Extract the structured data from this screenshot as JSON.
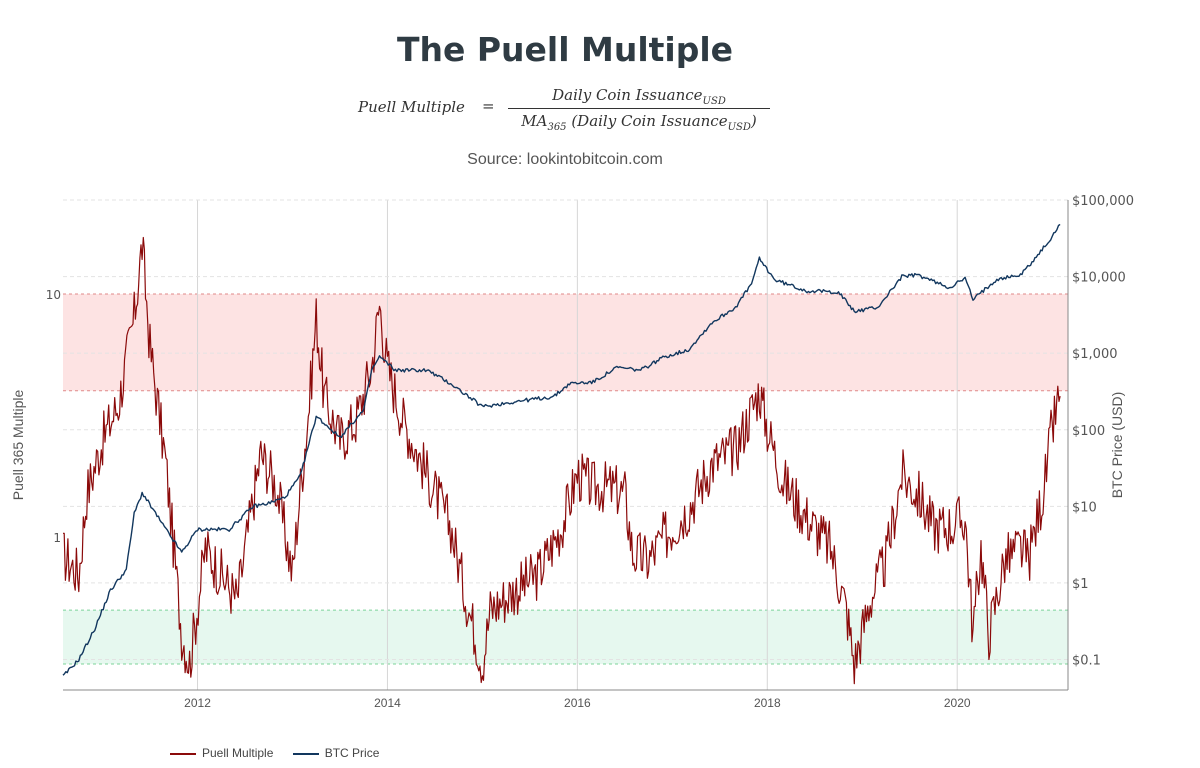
{
  "header": {
    "title": "The Puell Multiple",
    "formula_lhs": "Puell Multiple",
    "formula_eq": "=",
    "formula_num_text": "Daily Coin Issuance",
    "formula_num_sub": "USD",
    "formula_den_ma": "MA",
    "formula_den_ma_sub": "365",
    "formula_den_text": " (Daily Coin Issuance",
    "formula_den_sub": "USD",
    "formula_den_close": ")",
    "source": "Source: lookintobitcoin.com"
  },
  "colors": {
    "puell": "#8b0a0a",
    "puell_light": "#b58a86",
    "btc": "#12375e",
    "red_band": "#fde3e3",
    "green_band": "#e6f8ef",
    "red_band_line": "#e08a8a",
    "green_band_line": "#7cd39a",
    "grid": "#d6d6d6"
  },
  "chart_data": {
    "type": "line",
    "x_range": [
      "2010-08",
      "2021-03"
    ],
    "x_ticks": [
      "2012",
      "2014",
      "2016",
      "2018",
      "2020"
    ],
    "y_left": {
      "label": "Puell 365 Multiple",
      "scale": "log",
      "ticks": [
        "1",
        "10"
      ]
    },
    "y_right": {
      "label": "BTC Price (USD)",
      "scale": "log",
      "ticks": [
        "$0.1",
        "$1",
        "$10",
        "$100",
        "$1,000",
        "$10,000",
        "$100,000"
      ],
      "range": [
        0.04,
        100000
      ]
    },
    "bands": [
      {
        "name": "top zone",
        "from": 4,
        "to": 10,
        "color": "red"
      },
      {
        "name": "bottom zone",
        "from": 0.3,
        "to": 0.5,
        "color": "green"
      }
    ],
    "series": [
      {
        "name": "Puell Multiple",
        "axis": "left",
        "points": [
          [
            "2010-08",
            0.85
          ],
          [
            "2010-10",
            0.7
          ],
          [
            "2010-11",
            1.5
          ],
          [
            "2011-01",
            2.5
          ],
          [
            "2011-03",
            3.5
          ],
          [
            "2011-05",
            8
          ],
          [
            "2011-06",
            16
          ],
          [
            "2011-07",
            6
          ],
          [
            "2011-09",
            2
          ],
          [
            "2011-11",
            0.4
          ],
          [
            "2011-12",
            0.3
          ],
          [
            "2012-02",
            0.9
          ],
          [
            "2012-04",
            0.7
          ],
          [
            "2012-06",
            0.55
          ],
          [
            "2012-08",
            1.4
          ],
          [
            "2012-09",
            2.2
          ],
          [
            "2012-11",
            1.6
          ],
          [
            "2013-01",
            0.7
          ],
          [
            "2013-02",
            1.6
          ],
          [
            "2013-03",
            3.2
          ],
          [
            "2013-04",
            8
          ],
          [
            "2013-05",
            3.8
          ],
          [
            "2013-07",
            2.5
          ],
          [
            "2013-09",
            3.0
          ],
          [
            "2013-11",
            5
          ],
          [
            "2013-12",
            9
          ],
          [
            "2014-01",
            5
          ],
          [
            "2014-03",
            3.0
          ],
          [
            "2014-06",
            1.8
          ],
          [
            "2014-09",
            1.1
          ],
          [
            "2014-11",
            0.55
          ],
          [
            "2015-01",
            0.3
          ],
          [
            "2015-02",
            0.5
          ],
          [
            "2015-05",
            0.6
          ],
          [
            "2015-08",
            0.7
          ],
          [
            "2015-11",
            1.1
          ],
          [
            "2016-01",
            1.8
          ],
          [
            "2016-03",
            1.6
          ],
          [
            "2016-05",
            1.6
          ],
          [
            "2016-07",
            1.5
          ],
          [
            "2016-08",
            0.85
          ],
          [
            "2016-10",
            0.8
          ],
          [
            "2016-12",
            1.0
          ],
          [
            "2017-03",
            1.3
          ],
          [
            "2017-06",
            2.0
          ],
          [
            "2017-09",
            2.3
          ],
          [
            "2017-12",
            4.0
          ],
          [
            "2018-01",
            2.8
          ],
          [
            "2018-03",
            1.7
          ],
          [
            "2018-06",
            1.2
          ],
          [
            "2018-09",
            0.9
          ],
          [
            "2018-11",
            0.5
          ],
          [
            "2018-12",
            0.3
          ],
          [
            "2019-02",
            0.55
          ],
          [
            "2019-04",
            0.8
          ],
          [
            "2019-06",
            1.8
          ],
          [
            "2019-08",
            1.5
          ],
          [
            "2019-10",
            1.1
          ],
          [
            "2019-12",
            1.1
          ],
          [
            "2020-02",
            1.2
          ],
          [
            "2020-03",
            0.4
          ],
          [
            "2020-04",
            0.9
          ],
          [
            "2020-05",
            0.4
          ],
          [
            "2020-07",
            0.8
          ],
          [
            "2020-09",
            0.9
          ],
          [
            "2020-10",
            0.8
          ],
          [
            "2020-12",
            1.6
          ],
          [
            "2021-01",
            2.8
          ],
          [
            "2021-02",
            3.8
          ]
        ]
      },
      {
        "name": "BTC Price",
        "axis": "right",
        "points": [
          [
            "2010-08",
            0.06
          ],
          [
            "2010-10",
            0.1
          ],
          [
            "2010-12",
            0.25
          ],
          [
            "2011-02",
            0.8
          ],
          [
            "2011-04",
            1.5
          ],
          [
            "2011-05",
            8
          ],
          [
            "2011-06",
            15
          ],
          [
            "2011-09",
            5
          ],
          [
            "2011-11",
            2.5
          ],
          [
            "2012-01",
            5
          ],
          [
            "2012-05",
            5
          ],
          [
            "2012-08",
            10
          ],
          [
            "2012-10",
            11
          ],
          [
            "2012-12",
            13
          ],
          [
            "2013-02",
            25
          ],
          [
            "2013-04",
            150
          ],
          [
            "2013-07",
            80
          ],
          [
            "2013-10",
            180
          ],
          [
            "2013-11",
            600
          ],
          [
            "2013-12",
            900
          ],
          [
            "2014-02",
            600
          ],
          [
            "2014-06",
            600
          ],
          [
            "2014-09",
            400
          ],
          [
            "2015-01",
            200
          ],
          [
            "2015-06",
            240
          ],
          [
            "2015-10",
            270
          ],
          [
            "2015-12",
            400
          ],
          [
            "2016-03",
            420
          ],
          [
            "2016-06",
            650
          ],
          [
            "2016-09",
            600
          ],
          [
            "2016-12",
            900
          ],
          [
            "2017-03",
            1100
          ],
          [
            "2017-06",
            2500
          ],
          [
            "2017-09",
            4000
          ],
          [
            "2017-11",
            8000
          ],
          [
            "2017-12",
            17000
          ],
          [
            "2018-02",
            9000
          ],
          [
            "2018-06",
            6500
          ],
          [
            "2018-10",
            6300
          ],
          [
            "2018-12",
            3500
          ],
          [
            "2019-03",
            4000
          ],
          [
            "2019-06",
            10000
          ],
          [
            "2019-08",
            10500
          ],
          [
            "2019-12",
            7200
          ],
          [
            "2020-02",
            9500
          ],
          [
            "2020-03",
            5000
          ],
          [
            "2020-06",
            9300
          ],
          [
            "2020-09",
            10500
          ],
          [
            "2020-11",
            18000
          ],
          [
            "2021-01",
            33000
          ],
          [
            "2021-02",
            48000
          ]
        ]
      }
    ],
    "legend": {
      "position": "bottom-left",
      "entries": [
        "Puell Multiple",
        "BTC Price"
      ]
    }
  }
}
